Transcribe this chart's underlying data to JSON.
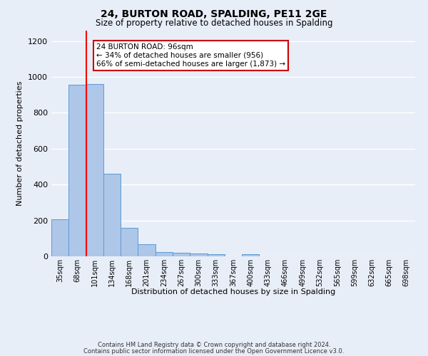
{
  "title": "24, BURTON ROAD, SPALDING, PE11 2GE",
  "subtitle": "Size of property relative to detached houses in Spalding",
  "xlabel": "Distribution of detached houses by size in Spalding",
  "ylabel": "Number of detached properties",
  "footnote1": "Contains HM Land Registry data © Crown copyright and database right 2024.",
  "footnote2": "Contains public sector information licensed under the Open Government Licence v3.0.",
  "annotation_line1": "24 BURTON ROAD: 96sqm",
  "annotation_line2": "← 34% of detached houses are smaller (956)",
  "annotation_line3": "66% of semi-detached houses are larger (1,873) →",
  "bar_labels": [
    "35sqm",
    "68sqm",
    "101sqm",
    "134sqm",
    "168sqm",
    "201sqm",
    "234sqm",
    "267sqm",
    "300sqm",
    "333sqm",
    "367sqm",
    "400sqm",
    "433sqm",
    "466sqm",
    "499sqm",
    "532sqm",
    "565sqm",
    "599sqm",
    "632sqm",
    "665sqm",
    "698sqm"
  ],
  "bar_values": [
    205,
    956,
    960,
    462,
    160,
    68,
    23,
    18,
    16,
    10,
    0,
    12,
    0,
    0,
    0,
    0,
    0,
    0,
    0,
    0,
    0
  ],
  "bar_color": "#aec6e8",
  "bar_edge_color": "#5b9bd5",
  "red_line_x": 1.5,
  "ylim": [
    0,
    1260
  ],
  "yticks": [
    0,
    200,
    400,
    600,
    800,
    1000,
    1200
  ],
  "bg_color": "#e8eef8",
  "grid_color": "#ffffff",
  "annotation_box_facecolor": "#ffffff",
  "annotation_box_edgecolor": "#cc0000",
  "title_fontsize": 10,
  "subtitle_fontsize": 8.5,
  "ylabel_fontsize": 8,
  "xlabel_fontsize": 8,
  "tick_fontsize": 7,
  "footnote_fontsize": 6
}
